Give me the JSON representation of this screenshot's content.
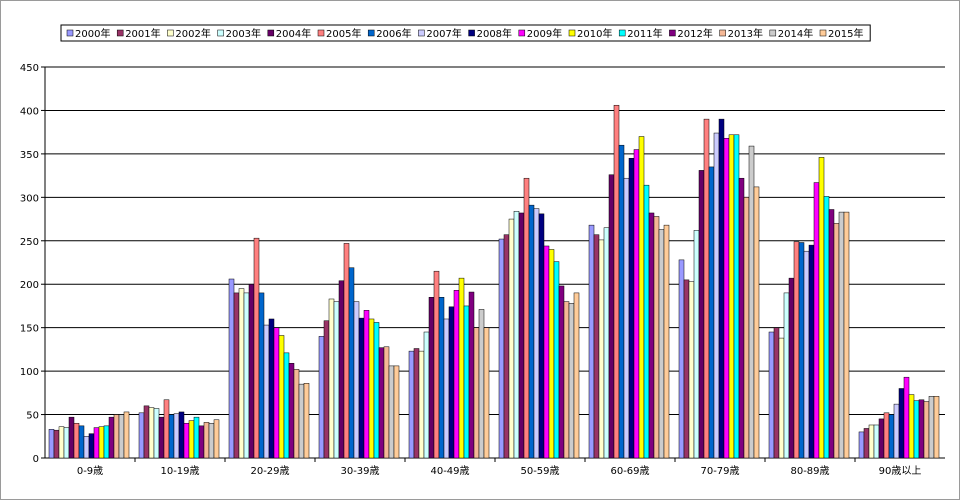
{
  "chart_data": {
    "type": "bar",
    "categories": [
      "0-9歳",
      "10-19歳",
      "20-29歳",
      "30-39歳",
      "40-49歳",
      "50-59歳",
      "60-69歳",
      "70-79歳",
      "80-89歳",
      "90歳以上"
    ],
    "series": [
      {
        "name": "2000年",
        "color": "#9999ff",
        "values": [
          33,
          52,
          206,
          140,
          123,
          252,
          268,
          228,
          145,
          30
        ]
      },
      {
        "name": "2001年",
        "color": "#993366",
        "values": [
          32,
          60,
          190,
          158,
          126,
          257,
          257,
          205,
          150,
          34
        ]
      },
      {
        "name": "2002年",
        "color": "#ffffcc",
        "values": [
          36,
          58,
          195,
          183,
          123,
          275,
          251,
          203,
          138,
          38
        ]
      },
      {
        "name": "2003年",
        "color": "#ccffff",
        "values": [
          35,
          57,
          190,
          180,
          145,
          284,
          265,
          262,
          190,
          38
        ]
      },
      {
        "name": "2004年",
        "color": "#660066",
        "values": [
          47,
          47,
          200,
          204,
          185,
          282,
          326,
          331,
          207,
          45
        ]
      },
      {
        "name": "2005年",
        "color": "#ff8080",
        "values": [
          40,
          67,
          253,
          247,
          215,
          322,
          406,
          390,
          249,
          52
        ]
      },
      {
        "name": "2006年",
        "color": "#0066cc",
        "values": [
          37,
          50,
          190,
          219,
          185,
          291,
          360,
          335,
          248,
          50
        ]
      },
      {
        "name": "2007年",
        "color": "#ccccff",
        "values": [
          25,
          51,
          153,
          180,
          160,
          287,
          322,
          374,
          238,
          62
        ]
      },
      {
        "name": "2008年",
        "color": "#000080",
        "values": [
          28,
          53,
          160,
          161,
          174,
          281,
          345,
          390,
          245,
          80
        ]
      },
      {
        "name": "2009年",
        "color": "#ff00ff",
        "values": [
          35,
          40,
          150,
          170,
          193,
          244,
          355,
          368,
          317,
          93
        ]
      },
      {
        "name": "2010年",
        "color": "#ffff00",
        "values": [
          36,
          43,
          141,
          160,
          207,
          240,
          370,
          372,
          346,
          73
        ]
      },
      {
        "name": "2011年",
        "color": "#00ffff",
        "values": [
          37,
          47,
          121,
          156,
          175,
          226,
          314,
          372,
          301,
          66
        ]
      },
      {
        "name": "2012年",
        "color": "#800080",
        "values": [
          47,
          37,
          109,
          127,
          191,
          198,
          282,
          322,
          286,
          67
        ]
      },
      {
        "name": "2013年",
        "color": "#f5b896",
        "values": [
          50,
          41,
          102,
          128,
          150,
          180,
          278,
          300,
          270,
          65
        ]
      },
      {
        "name": "2014年",
        "color": "#cccccc",
        "values": [
          50,
          40,
          85,
          106,
          171,
          178,
          263,
          359,
          283,
          71
        ]
      },
      {
        "name": "2015年",
        "color": "#ffcc99",
        "values": [
          53,
          44,
          86,
          106,
          150,
          190,
          268,
          312,
          283,
          71
        ]
      }
    ],
    "xlabel": "",
    "ylabel": "",
    "ylim": [
      0,
      450
    ],
    "yticks": [
      0,
      50,
      100,
      150,
      200,
      250,
      300,
      350,
      400,
      450
    ],
    "grid": true,
    "legend": "top-left"
  }
}
